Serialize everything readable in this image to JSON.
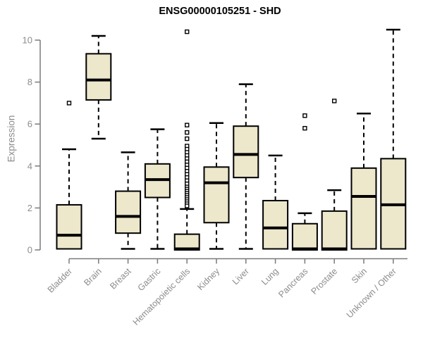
{
  "page": {
    "background": "#ffffff"
  },
  "chart_data": {
    "type": "boxplot",
    "title": "ENSG00000105251 - SHD",
    "ylabel": "Expression",
    "xlabel": "",
    "ylim": [
      0,
      10.6
    ],
    "yticks": [
      0,
      2,
      4,
      6,
      8,
      10
    ],
    "grid": false,
    "legend": false,
    "box_fill": "#ede7cb",
    "box_border": "#000000",
    "median_color": "#000000",
    "whisker_color": "#000000",
    "axis_color": "#7a7a7a",
    "tick_label_color": "#8c8c8c",
    "title_color": "#000000",
    "categories": [
      "Bladder",
      "Brain",
      "Breast",
      "Gastric",
      "Hematopoietic cells",
      "Kidney",
      "Liver",
      "Lung",
      "Pancreas",
      "Prostate",
      "Skin",
      "Unknown / Other"
    ],
    "series": [
      {
        "category": "Bladder",
        "min": 0.05,
        "q1": 0.05,
        "median": 0.7,
        "q3": 2.15,
        "max": 4.8,
        "outliers": [
          7.0
        ]
      },
      {
        "category": "Brain",
        "min": 5.3,
        "q1": 7.15,
        "median": 8.1,
        "q3": 9.35,
        "max": 10.2,
        "outliers": []
      },
      {
        "category": "Breast",
        "min": 0.05,
        "q1": 0.8,
        "median": 1.6,
        "q3": 2.8,
        "max": 4.65,
        "outliers": []
      },
      {
        "category": "Gastric",
        "min": 0.05,
        "q1": 2.5,
        "median": 3.35,
        "q3": 4.1,
        "max": 5.75,
        "outliers": []
      },
      {
        "category": "Hematopoietic cells",
        "min": 0.0,
        "q1": 0.0,
        "median": 0.05,
        "q3": 0.75,
        "max": 1.95,
        "outliers": [
          10.4,
          5.95,
          5.6,
          5.3,
          4.95,
          4.8,
          4.65,
          4.5,
          4.35,
          4.2,
          4.05,
          3.9,
          3.75,
          3.6,
          3.45,
          3.3,
          3.15,
          3.0,
          2.9,
          2.8,
          2.7,
          2.6,
          2.5,
          2.4,
          2.3,
          2.2,
          2.1
        ]
      },
      {
        "category": "Kidney",
        "min": 0.05,
        "q1": 1.3,
        "median": 3.2,
        "q3": 3.95,
        "max": 6.05,
        "outliers": []
      },
      {
        "category": "Liver",
        "min": 0.05,
        "q1": 3.45,
        "median": 4.55,
        "q3": 5.9,
        "max": 7.9,
        "outliers": []
      },
      {
        "category": "Lung",
        "min": 0.05,
        "q1": 0.05,
        "median": 1.05,
        "q3": 2.35,
        "max": 4.5,
        "outliers": []
      },
      {
        "category": "Pancreas",
        "min": 0.0,
        "q1": 0.0,
        "median": 0.05,
        "q3": 1.25,
        "max": 1.75,
        "outliers": [
          5.8,
          6.4
        ]
      },
      {
        "category": "Prostate",
        "min": 0.0,
        "q1": 0.0,
        "median": 0.05,
        "q3": 1.85,
        "max": 2.85,
        "outliers": [
          7.1
        ]
      },
      {
        "category": "Skin",
        "min": 0.05,
        "q1": 0.05,
        "median": 2.55,
        "q3": 3.9,
        "max": 6.5,
        "outliers": []
      },
      {
        "category": "Unknown / Other",
        "min": 0.05,
        "q1": 0.05,
        "median": 2.15,
        "q3": 4.35,
        "max": 10.5,
        "outliers": []
      }
    ]
  }
}
